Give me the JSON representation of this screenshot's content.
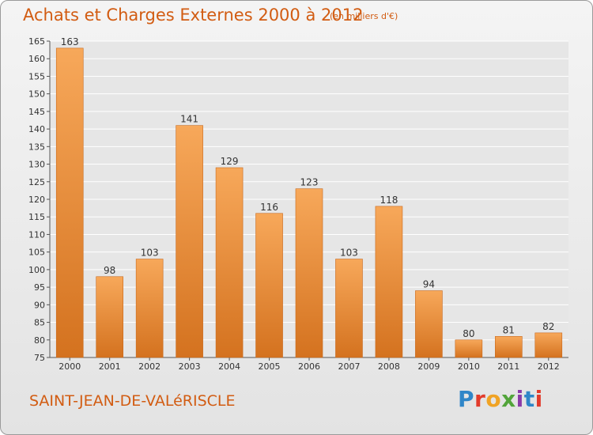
{
  "header": {
    "title": "Achats et Charges Externes 2000 à 2012",
    "unit": "(en milliers d'€)"
  },
  "footer": {
    "place": "SAINT-JEAN-DE-VALéRISCLE",
    "logo": "Proxiti"
  },
  "colors": {
    "bar_light": "#f7a85a",
    "bar_dark": "#d4721f",
    "text": "#d25c12"
  },
  "chart_data": {
    "type": "bar",
    "title": "Achats et Charges Externes 2000 à 2012",
    "subtitle": "(en milliers d'€)",
    "categories": [
      "2000",
      "2001",
      "2002",
      "2003",
      "2004",
      "2005",
      "2006",
      "2007",
      "2008",
      "2009",
      "2010",
      "2011",
      "2012"
    ],
    "values": [
      163,
      98,
      103,
      141,
      129,
      116,
      123,
      103,
      118,
      94,
      80,
      81,
      82
    ],
    "ylim": [
      75,
      165
    ],
    "yticks": [
      75,
      80,
      85,
      90,
      95,
      100,
      105,
      110,
      115,
      120,
      125,
      130,
      135,
      140,
      145,
      150,
      155,
      160,
      165
    ],
    "grid": true,
    "legend": "none"
  }
}
